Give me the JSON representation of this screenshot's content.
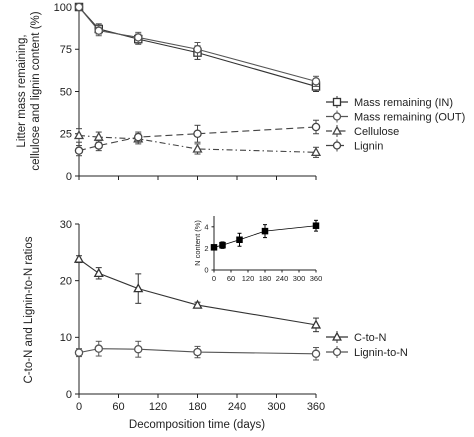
{
  "chart_data": [
    {
      "type": "line",
      "panel": "top",
      "xlabel": "",
      "ylabel": "Litter mass remaining, cellulose and lignin content (%)",
      "ylabel_lines": [
        "Litter mass remaining,",
        "cellulose and lignin content (%)"
      ],
      "xlim": [
        0,
        360
      ],
      "ylim": [
        0,
        100
      ],
      "yticks": [
        0,
        25,
        50,
        75,
        100
      ],
      "xtick_labels": "none",
      "grid": false,
      "legend_position": "right",
      "x": [
        0,
        30,
        90,
        180,
        360
      ],
      "series": [
        {
          "name": "Mass remaining (IN)",
          "marker": "square-open",
          "dash": "solid",
          "color": "#333333",
          "values": [
            100,
            87,
            81,
            73,
            53
          ],
          "err": [
            1,
            3,
            3,
            4,
            3
          ]
        },
        {
          "name": "Mass remaining (OUT)",
          "marker": "circle-open",
          "dash": "solid",
          "color": "#555555",
          "values": [
            100,
            86,
            82,
            75,
            56
          ],
          "err": [
            1,
            3,
            3,
            4,
            3
          ]
        },
        {
          "name": "Cellulose",
          "marker": "triangle-open",
          "dash": "dashdot",
          "color": "#444444",
          "values": [
            24,
            23,
            22,
            16,
            14
          ],
          "err": [
            4,
            3,
            3,
            3,
            3
          ]
        },
        {
          "name": "Lignin",
          "marker": "circle-open",
          "dash": "dashed",
          "color": "#444444",
          "values": [
            15,
            18,
            23,
            25,
            29
          ],
          "err": [
            3,
            3,
            3,
            5,
            4
          ]
        }
      ]
    },
    {
      "type": "line",
      "panel": "bottom",
      "xlabel": "Decomposition time (days)",
      "ylabel": "C-to-N and Lignin-to-N ratios",
      "xlim": [
        0,
        360
      ],
      "ylim": [
        0,
        30
      ],
      "xticks": [
        0,
        60,
        120,
        180,
        240,
        300,
        360
      ],
      "yticks": [
        0,
        10,
        20,
        30
      ],
      "grid": false,
      "legend_position": "bottom-right",
      "x": [
        0,
        30,
        90,
        180,
        360
      ],
      "series": [
        {
          "name": "C-to-N",
          "marker": "triangle-open",
          "dash": "solid",
          "color": "#333333",
          "values": [
            23.8,
            21.3,
            18.6,
            15.7,
            12.2
          ],
          "err": [
            0.6,
            1.0,
            2.6,
            0.5,
            1.2
          ]
        },
        {
          "name": "Lignin-to-N",
          "marker": "circle-open",
          "dash": "solid",
          "color": "#555555",
          "values": [
            7.3,
            8.0,
            7.9,
            7.4,
            7.1
          ],
          "err": [
            0.7,
            1.3,
            1.4,
            1.0,
            1.1
          ]
        }
      ]
    },
    {
      "type": "line",
      "panel": "inset",
      "xlabel": "",
      "ylabel": "N content (%)",
      "xlim": [
        0,
        360
      ],
      "ylim": [
        0,
        5
      ],
      "xticks": [
        0,
        60,
        120,
        180,
        240,
        300,
        360
      ],
      "yticks": [
        0,
        2,
        4
      ],
      "grid": false,
      "x": [
        0,
        30,
        90,
        180,
        360
      ],
      "series": [
        {
          "marker": "square-filled",
          "dash": "solid",
          "color": "#000000",
          "values": [
            2.1,
            2.3,
            2.8,
            3.6,
            4.1
          ],
          "err": [
            0.2,
            0.3,
            0.6,
            0.6,
            0.5
          ]
        }
      ]
    }
  ]
}
